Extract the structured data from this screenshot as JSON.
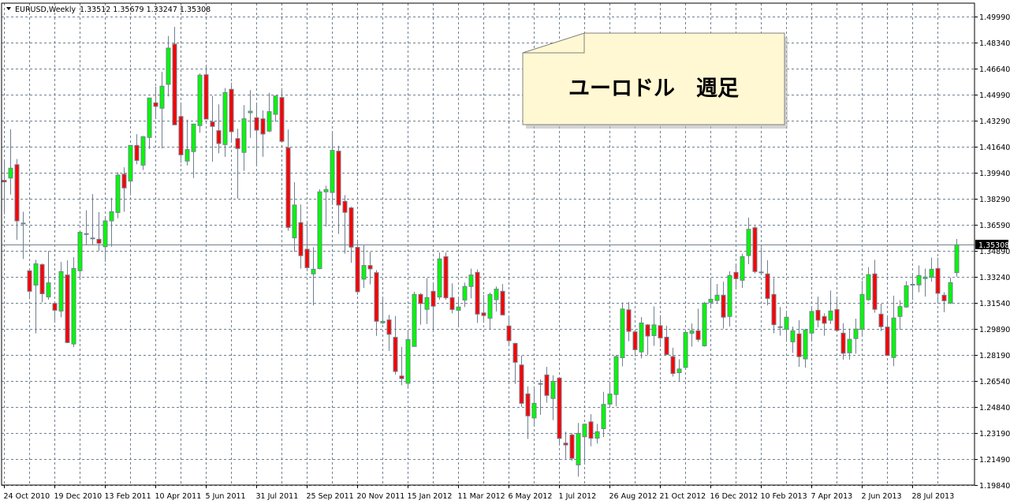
{
  "header": {
    "symbol": "EURUSD,Weekly",
    "ohlc": "1.33512 1.35679 1.33247 1.35308",
    "menu_icon": "triangle-down-icon"
  },
  "annotation": {
    "text": "ユーロドル　週足",
    "fill": "#fff8d2"
  },
  "chart_data": {
    "type": "candlestick",
    "title": "",
    "timeframe": "Weekly",
    "symbol": "EURUSD",
    "ylim": [
      1.1984,
      1.4999
    ],
    "grid": true,
    "colors": {
      "bull": "#00ff00",
      "bear": "#ff0000",
      "wick": "#708090",
      "grid": "#708090"
    },
    "current_price": "1.35308",
    "y_ticks": [
      "1.49990",
      "1.48340",
      "1.46640",
      "1.44990",
      "1.43290",
      "1.41640",
      "1.39940",
      "1.38290",
      "1.36590",
      "1.34890",
      "1.33240",
      "1.31540",
      "1.29890",
      "1.28190",
      "1.26540",
      "1.24840",
      "1.23190",
      "1.21490",
      "1.19840"
    ],
    "x_ticks": [
      {
        "label": "24 Oct 2010",
        "date": "2010-10-24"
      },
      {
        "label": "19 Dec 2010",
        "date": "2010-12-19"
      },
      {
        "label": "13 Feb 2011",
        "date": "2011-02-13"
      },
      {
        "label": "10 Apr 2011",
        "date": "2011-04-10"
      },
      {
        "label": "5 Jun 2011",
        "date": "2011-06-05"
      },
      {
        "label": "31 Jul 2011",
        "date": "2011-07-31"
      },
      {
        "label": "25 Sep 2011",
        "date": "2011-09-25"
      },
      {
        "label": "20 Nov 2011",
        "date": "2011-11-20"
      },
      {
        "label": "15 Jan 2012",
        "date": "2012-01-15"
      },
      {
        "label": "11 Mar 2012",
        "date": "2012-03-11"
      },
      {
        "label": "6 May 2012",
        "date": "2012-05-06"
      },
      {
        "label": "1 Jul 2012",
        "date": "2012-07-01"
      },
      {
        "label": "26 Aug 2012",
        "date": "2012-08-26"
      },
      {
        "label": "21 Oct 2012",
        "date": "2012-10-21"
      },
      {
        "label": "16 Dec 2012",
        "date": "2012-12-16"
      },
      {
        "label": "10 Feb 2013",
        "date": "2013-02-10"
      },
      {
        "label": "7 Apr 2013",
        "date": "2013-04-07"
      },
      {
        "label": "2 Jun 2013",
        "date": "2013-06-02"
      },
      {
        "label": "28 Jul 2013",
        "date": "2013-07-28"
      }
    ],
    "candle_fields": [
      "date",
      "open",
      "high",
      "low",
      "close"
    ],
    "candles": [
      [
        "2010-10-24",
        1.3945,
        1.4073,
        1.3726,
        1.3935
      ],
      [
        "2010-10-31",
        1.396,
        1.4273,
        1.3853,
        1.4023
      ],
      [
        "2010-11-07",
        1.4046,
        1.4082,
        1.3562,
        1.3684
      ],
      [
        "2010-11-14",
        1.367,
        1.3743,
        1.3439,
        1.3665
      ],
      [
        "2010-11-21",
        1.3363,
        1.3372,
        1.318,
        1.3231
      ],
      [
        "2010-11-28",
        1.3271,
        1.3434,
        1.296,
        1.3408
      ],
      [
        "2010-12-05",
        1.3403,
        1.341,
        1.316,
        1.3215
      ],
      [
        "2010-12-12",
        1.3195,
        1.349,
        1.3177,
        1.3285
      ],
      [
        "2010-12-19",
        1.3153,
        1.316,
        1.3033,
        1.3109
      ],
      [
        "2010-12-26",
        1.3104,
        1.342,
        1.3063,
        1.3358
      ],
      [
        "2011-01-02",
        1.3336,
        1.343,
        1.2897,
        1.2901
      ],
      [
        "2011-01-09",
        1.2892,
        1.3451,
        1.2872,
        1.3378
      ],
      [
        "2011-01-16",
        1.3363,
        1.3611,
        1.3312,
        1.3611
      ],
      [
        "2011-01-23",
        1.36,
        1.3752,
        1.3532,
        1.3602
      ],
      [
        "2011-01-30",
        1.357,
        1.3857,
        1.3532,
        1.3574
      ],
      [
        "2011-02-06",
        1.3566,
        1.374,
        1.349,
        1.354
      ],
      [
        "2011-02-13",
        1.3518,
        1.371,
        1.3422,
        1.3684
      ],
      [
        "2011-02-20",
        1.3684,
        1.3833,
        1.3518,
        1.3743
      ],
      [
        "2011-02-27",
        1.3738,
        1.3997,
        1.3701,
        1.3979
      ],
      [
        "2011-03-06",
        1.3985,
        1.4029,
        1.3743,
        1.3896
      ],
      [
        "2011-03-13",
        1.3941,
        1.417,
        1.3848,
        1.417
      ],
      [
        "2011-03-20",
        1.417,
        1.4242,
        1.4048,
        1.4073
      ],
      [
        "2011-03-27",
        1.4043,
        1.423,
        1.4011,
        1.4226
      ],
      [
        "2011-04-03",
        1.4221,
        1.4475,
        1.4147,
        1.4475
      ],
      [
        "2011-04-10",
        1.4444,
        1.4548,
        1.4339,
        1.4421
      ],
      [
        "2011-04-17",
        1.4409,
        1.4644,
        1.415,
        1.4551
      ],
      [
        "2011-04-24",
        1.4563,
        1.4874,
        1.4485,
        1.4796
      ],
      [
        "2011-05-01",
        1.4822,
        1.4933,
        1.4302,
        1.4302
      ],
      [
        "2011-05-08",
        1.4356,
        1.4441,
        1.4057,
        1.4109
      ],
      [
        "2011-05-15",
        1.4069,
        1.4336,
        1.404,
        1.4143
      ],
      [
        "2011-05-22",
        1.413,
        1.431,
        1.396,
        1.4307
      ],
      [
        "2011-05-29",
        1.4297,
        1.4632,
        1.4251,
        1.4622
      ],
      [
        "2011-06-05",
        1.4625,
        1.4688,
        1.4339,
        1.4339
      ],
      [
        "2011-06-12",
        1.4321,
        1.4488,
        1.4065,
        1.4292
      ],
      [
        "2011-06-19",
        1.4265,
        1.4434,
        1.4119,
        1.4182
      ],
      [
        "2011-06-26",
        1.4175,
        1.4539,
        1.4096,
        1.451
      ],
      [
        "2011-07-03",
        1.4531,
        1.4573,
        1.4192,
        1.4258
      ],
      [
        "2011-07-10",
        1.4214,
        1.4277,
        1.3828,
        1.415
      ],
      [
        "2011-07-17",
        1.4125,
        1.4429,
        1.4006,
        1.4341
      ],
      [
        "2011-07-24",
        1.438,
        1.4526,
        1.4218,
        1.439
      ],
      [
        "2011-07-31",
        1.4348,
        1.4446,
        1.404,
        1.4268
      ],
      [
        "2011-08-07",
        1.4341,
        1.4395,
        1.4096,
        1.4243
      ],
      [
        "2011-08-14",
        1.4262,
        1.4509,
        1.4255,
        1.4387
      ],
      [
        "2011-08-21",
        1.437,
        1.4488,
        1.4322,
        1.4488
      ],
      [
        "2011-08-28",
        1.4478,
        1.4539,
        1.4196,
        1.4196
      ],
      [
        "2011-09-04",
        1.4155,
        1.4272,
        1.362,
        1.3642
      ],
      [
        "2011-09-11",
        1.3575,
        1.3933,
        1.3485,
        1.3786
      ],
      [
        "2011-09-18",
        1.3673,
        1.379,
        1.3377,
        1.346
      ],
      [
        "2011-09-25",
        1.3502,
        1.3685,
        1.336,
        1.3383
      ],
      [
        "2011-10-02",
        1.3343,
        1.3515,
        1.314,
        1.3373
      ],
      [
        "2011-10-09",
        1.3377,
        1.3888,
        1.3372,
        1.3871
      ],
      [
        "2011-10-16",
        1.3871,
        1.391,
        1.3647,
        1.3886
      ],
      [
        "2011-10-23",
        1.3867,
        1.425,
        1.3786,
        1.4138
      ],
      [
        "2011-10-30",
        1.4133,
        1.4167,
        1.36,
        1.3786
      ],
      [
        "2011-11-06",
        1.381,
        1.385,
        1.3473,
        1.3739
      ],
      [
        "2011-11-13",
        1.3768,
        1.3775,
        1.3414,
        1.3515
      ],
      [
        "2011-11-20",
        1.3514,
        1.3558,
        1.3208,
        1.3228
      ],
      [
        "2011-11-27",
        1.3309,
        1.3532,
        1.3253,
        1.3397
      ],
      [
        "2011-12-04",
        1.3397,
        1.3485,
        1.3275,
        1.3375
      ],
      [
        "2011-12-11",
        1.3351,
        1.3368,
        1.2944,
        1.3038
      ],
      [
        "2011-12-18",
        1.3028,
        1.3194,
        1.302,
        1.3038
      ],
      [
        "2011-12-25",
        1.3047,
        1.3079,
        1.2847,
        1.2954
      ],
      [
        "2012-01-01",
        1.2935,
        1.3072,
        1.2695,
        1.2715
      ],
      [
        "2012-01-08",
        1.2686,
        1.2873,
        1.2627,
        1.2669
      ],
      [
        "2012-01-15",
        1.2639,
        1.2983,
        1.261,
        1.292
      ],
      [
        "2012-01-22",
        1.2876,
        1.3228,
        1.2876,
        1.3211
      ],
      [
        "2012-01-29",
        1.3211,
        1.322,
        1.3016,
        1.3152
      ],
      [
        "2012-02-05",
        1.3115,
        1.3316,
        1.3021,
        1.3191
      ],
      [
        "2012-02-12",
        1.3231,
        1.3287,
        1.2974,
        1.3135
      ],
      [
        "2012-02-19",
        1.3194,
        1.3481,
        1.3177,
        1.3439
      ],
      [
        "2012-02-26",
        1.3454,
        1.3481,
        1.3177,
        1.3189
      ],
      [
        "2012-03-04",
        1.319,
        1.3282,
        1.3089,
        1.3114
      ],
      [
        "2012-03-11",
        1.3109,
        1.3194,
        1.2999,
        1.313
      ],
      [
        "2012-03-18",
        1.3175,
        1.3287,
        1.313,
        1.3262
      ],
      [
        "2012-03-25",
        1.3262,
        1.3377,
        1.3185,
        1.3336
      ],
      [
        "2012-04-01",
        1.3353,
        1.3372,
        1.3028,
        1.3084
      ],
      [
        "2012-04-08",
        1.3092,
        1.3207,
        1.3028,
        1.3075
      ],
      [
        "2012-04-15",
        1.3058,
        1.3223,
        1.2987,
        1.3211
      ],
      [
        "2012-04-22",
        1.3177,
        1.3262,
        1.3101,
        1.3245
      ],
      [
        "2012-04-29",
        1.3231,
        1.3278,
        1.3075,
        1.3079
      ],
      [
        "2012-05-06",
        1.3008,
        1.3075,
        1.2881,
        1.2913
      ],
      [
        "2012-05-13",
        1.2896,
        1.29,
        1.2635,
        1.2774
      ],
      [
        "2012-05-20",
        1.2757,
        1.2818,
        1.2487,
        1.251
      ],
      [
        "2012-05-27",
        1.2571,
        1.2619,
        1.228,
        1.2429
      ],
      [
        "2012-06-03",
        1.2416,
        1.2619,
        1.2365,
        1.251
      ],
      [
        "2012-06-10",
        1.2635,
        1.2664,
        1.2436,
        1.2638
      ],
      [
        "2012-06-17",
        1.2693,
        1.2745,
        1.2514,
        1.2561
      ],
      [
        "2012-06-24",
        1.2541,
        1.269,
        1.2402,
        1.2652
      ],
      [
        "2012-07-01",
        1.2673,
        1.268,
        1.2238,
        1.2284
      ],
      [
        "2012-07-08",
        1.2254,
        1.2327,
        1.2153,
        1.2242
      ],
      [
        "2012-07-15",
        1.2307,
        1.2318,
        1.2141,
        1.2156
      ],
      [
        "2012-07-22",
        1.2114,
        1.2384,
        1.2038,
        1.2317
      ],
      [
        "2012-07-29",
        1.2295,
        1.238,
        1.2119,
        1.2376
      ],
      [
        "2012-08-05",
        1.2391,
        1.244,
        1.2234,
        1.2285
      ],
      [
        "2012-08-12",
        1.2286,
        1.2378,
        1.2251,
        1.2327
      ],
      [
        "2012-08-19",
        1.2347,
        1.2584,
        1.2293,
        1.2503
      ],
      [
        "2012-08-26",
        1.2505,
        1.2638,
        1.249,
        1.257
      ],
      [
        "2012-09-02",
        1.2567,
        1.2821,
        1.2491,
        1.2811
      ],
      [
        "2012-09-09",
        1.2804,
        1.3159,
        1.2748,
        1.3117
      ],
      [
        "2012-09-16",
        1.3112,
        1.3163,
        1.2909,
        1.2973
      ],
      [
        "2012-09-23",
        1.297,
        1.2975,
        1.2812,
        1.2855
      ],
      [
        "2012-09-30",
        1.2841,
        1.3065,
        1.2799,
        1.3027
      ],
      [
        "2012-10-07",
        1.3015,
        1.302,
        1.2821,
        1.2943
      ],
      [
        "2012-10-14",
        1.2946,
        1.3134,
        1.288,
        1.3015
      ],
      [
        "2012-10-21",
        1.301,
        1.3078,
        1.2872,
        1.2931
      ],
      [
        "2012-10-28",
        1.2936,
        1.301,
        1.282,
        1.2824
      ],
      [
        "2012-11-04",
        1.2811,
        1.2868,
        1.2682,
        1.2702
      ],
      [
        "2012-11-11",
        1.2707,
        1.2794,
        1.2655,
        1.2731
      ],
      [
        "2012-11-18",
        1.2741,
        1.297,
        1.2735,
        1.2966
      ],
      [
        "2012-11-25",
        1.2961,
        1.3024,
        1.2875,
        1.2977
      ],
      [
        "2012-12-02",
        1.2977,
        1.3119,
        1.2905,
        1.2921
      ],
      [
        "2012-12-09",
        1.288,
        1.3163,
        1.2875,
        1.3155
      ],
      [
        "2012-12-16",
        1.316,
        1.3316,
        1.3125,
        1.318
      ],
      [
        "2012-12-23",
        1.3172,
        1.3278,
        1.3157,
        1.3206
      ],
      [
        "2012-12-30",
        1.3206,
        1.3292,
        1.2991,
        1.3064
      ],
      [
        "2013-01-06",
        1.3069,
        1.336,
        1.3004,
        1.3333
      ],
      [
        "2013-01-13",
        1.3353,
        1.341,
        1.3245,
        1.3312
      ],
      [
        "2013-01-20",
        1.3302,
        1.3473,
        1.3253,
        1.3454
      ],
      [
        "2013-01-27",
        1.3461,
        1.3705,
        1.3405,
        1.363
      ],
      [
        "2013-02-03",
        1.364,
        1.3651,
        1.3346,
        1.3358
      ],
      [
        "2013-02-10",
        1.3355,
        1.3515,
        1.334,
        1.3354
      ],
      [
        "2013-02-17",
        1.3343,
        1.3431,
        1.314,
        1.3185
      ],
      [
        "2013-02-24",
        1.3211,
        1.3316,
        1.296,
        1.3016
      ],
      [
        "2013-03-03",
        1.3003,
        1.313,
        1.2945,
        1.3001
      ],
      [
        "2013-03-10",
        1.2986,
        1.3101,
        1.2906,
        1.3064
      ],
      [
        "2013-03-17",
        1.2906,
        1.3004,
        1.2835,
        1.2977
      ],
      [
        "2013-03-24",
        1.2957,
        1.3045,
        1.2745,
        1.281
      ],
      [
        "2013-03-31",
        1.2796,
        1.299,
        1.274,
        1.2982
      ],
      [
        "2013-04-07",
        1.2962,
        1.3135,
        1.2916,
        1.3101
      ],
      [
        "2013-04-14",
        1.3109,
        1.3197,
        1.2999,
        1.3045
      ],
      [
        "2013-04-21",
        1.3069,
        1.3089,
        1.2945,
        1.3025
      ],
      [
        "2013-04-28",
        1.3045,
        1.3236,
        1.3021,
        1.3104
      ],
      [
        "2013-05-05",
        1.3114,
        1.3194,
        1.2975,
        1.2979
      ],
      [
        "2013-05-12",
        1.2962,
        1.3025,
        1.2791,
        1.2832
      ],
      [
        "2013-05-19",
        1.2835,
        1.2991,
        1.2791,
        1.2922
      ],
      [
        "2013-05-26",
        1.2927,
        1.3055,
        1.283,
        1.2988
      ],
      [
        "2013-06-02",
        1.2986,
        1.3299,
        1.294,
        1.3211
      ],
      [
        "2013-06-09",
        1.3177,
        1.3387,
        1.317,
        1.3338
      ],
      [
        "2013-06-16",
        1.3343,
        1.3434,
        1.3093,
        1.3115
      ],
      [
        "2013-06-23",
        1.3084,
        1.3152,
        1.2974,
        1.3003
      ],
      [
        "2013-06-30",
        1.3001,
        1.3076,
        1.2815,
        1.2818
      ],
      [
        "2013-07-07",
        1.2805,
        1.3203,
        1.2749,
        1.3059
      ],
      [
        "2013-07-14",
        1.3069,
        1.3174,
        1.2983,
        1.3133
      ],
      [
        "2013-07-21",
        1.313,
        1.3296,
        1.3125,
        1.3267
      ],
      [
        "2013-07-28",
        1.3275,
        1.3346,
        1.3174,
        1.3276
      ],
      [
        "2013-08-04",
        1.3272,
        1.3397,
        1.3225,
        1.3333
      ],
      [
        "2013-08-11",
        1.3313,
        1.3377,
        1.3197,
        1.3323
      ],
      [
        "2013-08-18",
        1.3321,
        1.3448,
        1.3292,
        1.3373
      ],
      [
        "2013-08-25",
        1.3378,
        1.3448,
        1.3152,
        1.3218
      ],
      [
        "2013-09-01",
        1.3206,
        1.3225,
        1.3096,
        1.317
      ],
      [
        "2013-09-08",
        1.3155,
        1.3318,
        1.315,
        1.3287
      ],
      [
        "2013-09-15",
        1.33512,
        1.35679,
        1.33247,
        1.35308
      ]
    ]
  }
}
